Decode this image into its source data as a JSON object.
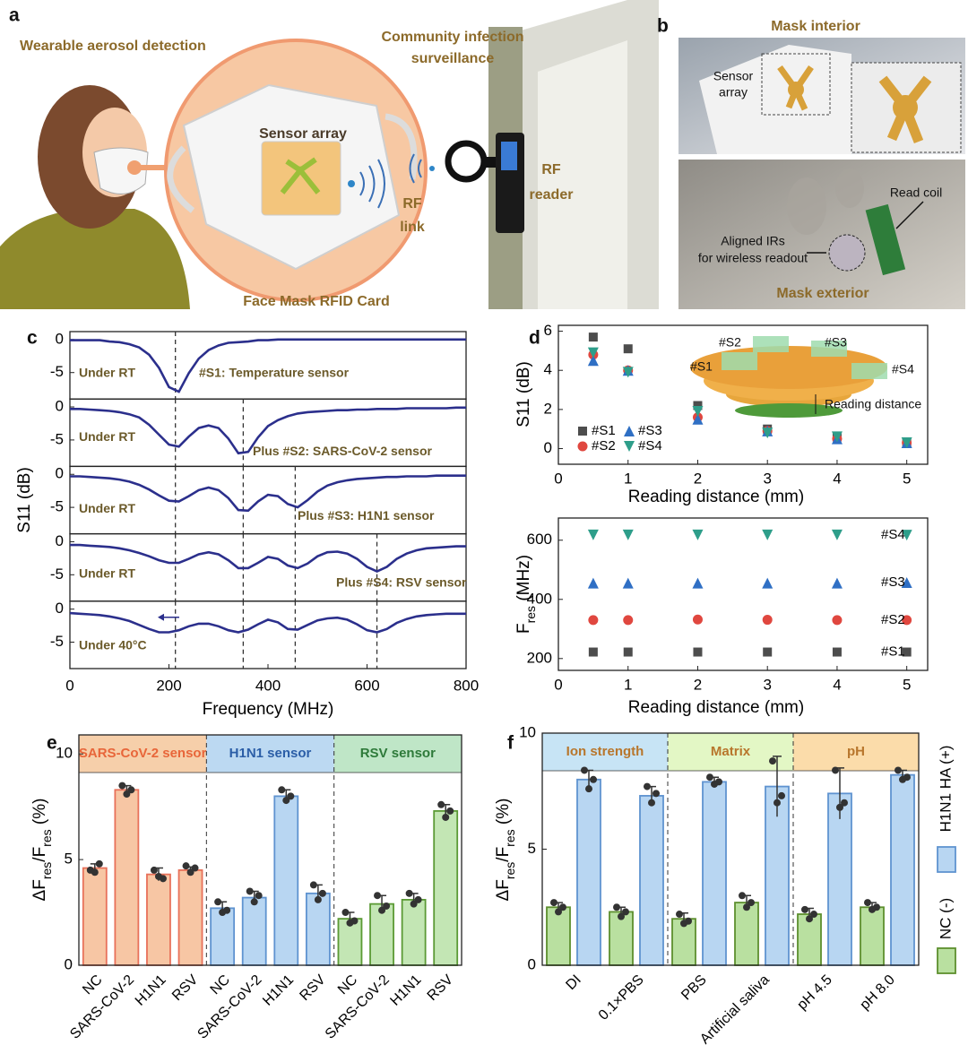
{
  "panels": {
    "a": {
      "label": "a",
      "wearable": "Wearable aerosol detection",
      "community": [
        "Community infection",
        "surveillance"
      ],
      "sensor_array": "Sensor array",
      "rf_link": [
        "RF",
        "link"
      ],
      "rf_reader": [
        "RF",
        "reader"
      ],
      "card": "Face Mask RFID Card"
    },
    "b": {
      "label": "b",
      "interior": "Mask interior",
      "sensor_array": [
        "Sensor",
        "array"
      ],
      "read_coil": "Read coil",
      "aligned": [
        "Aligned IRs",
        "for wireless readout"
      ],
      "exterior": "Mask exterior"
    },
    "c": {
      "label": "c"
    },
    "d": {
      "label": "d",
      "inset_labels": [
        "#S1",
        "#S2",
        "#S3",
        "#S4"
      ],
      "inset_distance": "Reading distance"
    },
    "e": {
      "label": "e"
    },
    "f": {
      "label": "f"
    }
  },
  "chart_data": [
    {
      "type": "line",
      "xlabel": "Frequency (MHz)",
      "ylabel": "S11 (dB)",
      "xlim": [
        0,
        800
      ],
      "xticks": [
        0,
        200,
        400,
        600,
        800
      ],
      "x": [
        0,
        20,
        40,
        60,
        80,
        100,
        120,
        140,
        160,
        180,
        200,
        220,
        240,
        260,
        280,
        300,
        320,
        340,
        360,
        380,
        400,
        420,
        440,
        460,
        480,
        500,
        520,
        540,
        560,
        580,
        600,
        620,
        640,
        660,
        680,
        700,
        720,
        740,
        760,
        780,
        800
      ],
      "subplots": [
        {
          "ylim": [
            -9,
            1.2
          ],
          "yticks": [
            -5,
            0
          ],
          "color": "#2b2f8c",
          "markers": [
            213
          ],
          "annotations": [
            "Under RT",
            "#S1: Temperature sensor"
          ],
          "values": [
            -0.1,
            -0.1,
            -0.1,
            -0.1,
            -0.3,
            -0.4,
            -0.7,
            -1.2,
            -2.3,
            -4.3,
            -7.2,
            -7.9,
            -5.1,
            -2.9,
            -1.6,
            -0.9,
            -0.5,
            -0.4,
            -0.3,
            -0.1,
            -0.1,
            0,
            0,
            0,
            0,
            0,
            0,
            0,
            0,
            0,
            0,
            0,
            0,
            0,
            0,
            0,
            0,
            0,
            0,
            0,
            0
          ]
        },
        {
          "ylim": [
            -9,
            1.2
          ],
          "yticks": [
            -5,
            0
          ],
          "color": "#2b2f8c",
          "markers": [
            213,
            350
          ],
          "annotations": [
            "Under RT",
            "Plus #S2: SARS-CoV-2 sensor"
          ],
          "values": [
            -0.3,
            -0.3,
            -0.4,
            -0.5,
            -0.6,
            -0.8,
            -1.1,
            -1.6,
            -2.7,
            -4.2,
            -5.7,
            -6.0,
            -4.5,
            -3.2,
            -2.8,
            -3.2,
            -4.8,
            -7.0,
            -6.8,
            -4.6,
            -2.9,
            -2.0,
            -1.4,
            -1.0,
            -0.8,
            -0.7,
            -0.6,
            -0.5,
            -0.5,
            -0.4,
            -0.4,
            -0.3,
            -0.3,
            -0.3,
            -0.2,
            -0.2,
            -0.2,
            -0.2,
            -0.2,
            -0.1,
            -0.1
          ]
        },
        {
          "ylim": [
            -9,
            1.2
          ],
          "yticks": [
            -5,
            0
          ],
          "color": "#2b2f8c",
          "markers": [
            213,
            350,
            455
          ],
          "annotations": [
            "Under RT",
            "Plus #S3: H1N1 sensor"
          ],
          "values": [
            -0.3,
            -0.3,
            -0.4,
            -0.5,
            -0.6,
            -0.8,
            -1.1,
            -1.6,
            -2.3,
            -3.2,
            -4.0,
            -4.1,
            -3.3,
            -2.4,
            -2.0,
            -2.4,
            -3.6,
            -5.4,
            -5.5,
            -4.1,
            -3.1,
            -3.3,
            -4.5,
            -5.0,
            -3.9,
            -2.6,
            -1.7,
            -1.2,
            -0.9,
            -0.7,
            -0.6,
            -0.5,
            -0.4,
            -0.4,
            -0.3,
            -0.3,
            -0.3,
            -0.2,
            -0.2,
            -0.2,
            -0.2
          ]
        },
        {
          "ylim": [
            -9,
            1.2
          ],
          "yticks": [
            -5,
            0
          ],
          "color": "#2b2f8c",
          "markers": [
            213,
            350,
            455,
            620
          ],
          "annotations": [
            "Under RT",
            "Plus #S4: RSV sensor"
          ],
          "values": [
            -0.5,
            -0.5,
            -0.6,
            -0.7,
            -0.8,
            -1.0,
            -1.3,
            -1.7,
            -2.2,
            -2.8,
            -3.2,
            -3.2,
            -2.6,
            -1.9,
            -1.6,
            -1.9,
            -2.8,
            -4.0,
            -4.0,
            -3.2,
            -2.3,
            -2.6,
            -3.6,
            -4.0,
            -3.3,
            -2.2,
            -1.6,
            -1.5,
            -1.8,
            -2.6,
            -3.8,
            -4.5,
            -3.8,
            -2.6,
            -1.8,
            -1.3,
            -1.0,
            -0.9,
            -0.8,
            -0.7,
            -0.7
          ]
        },
        {
          "ylim": [
            -9,
            1.2
          ],
          "yticks": [
            -5,
            0
          ],
          "color": "#2b2f8c",
          "markers": [
            213,
            350,
            455,
            620
          ],
          "annotations": [
            "Under 40°C"
          ],
          "values": [
            -0.6,
            -0.7,
            -0.8,
            -0.9,
            -1.1,
            -1.4,
            -1.8,
            -2.4,
            -3.0,
            -3.5,
            -3.5,
            -3.2,
            -2.6,
            -2.2,
            -2.2,
            -2.6,
            -3.2,
            -3.5,
            -3.1,
            -2.3,
            -1.6,
            -2.0,
            -3.0,
            -3.1,
            -2.4,
            -1.7,
            -1.4,
            -1.3,
            -1.6,
            -2.3,
            -3.2,
            -3.5,
            -3.0,
            -2.1,
            -1.5,
            -1.1,
            -0.9,
            -0.8,
            -0.7,
            -0.7,
            -0.7
          ]
        }
      ]
    },
    {
      "type": "scatter",
      "xlabel": "Reading distance (mm)",
      "ylabel": "S11 (dB)",
      "xlim": [
        0,
        5.3
      ],
      "xticks": [
        0,
        1,
        2,
        3,
        4,
        5
      ],
      "ylim": [
        -0.8,
        6.3
      ],
      "yticks": [
        0,
        2,
        4,
        6
      ],
      "legend": "left",
      "x": [
        0.5,
        1,
        2,
        3,
        4,
        5
      ],
      "series": [
        {
          "name": "#S1",
          "color": "#4d4d4d",
          "marker": "square",
          "values": [
            5.7,
            5.1,
            2.2,
            1.0,
            0.6,
            0.3
          ]
        },
        {
          "name": "#S2",
          "color": "#e0473f",
          "marker": "circle",
          "values": [
            4.8,
            4.0,
            1.6,
            0.9,
            0.5,
            0.3
          ]
        },
        {
          "name": "#S3",
          "color": "#2f6fc4",
          "marker": "triangle-up",
          "values": [
            4.5,
            4.0,
            1.5,
            0.9,
            0.5,
            0.3
          ]
        },
        {
          "name": "#S4",
          "color": "#2e9e8a",
          "marker": "triangle-down",
          "values": [
            4.9,
            3.9,
            1.9,
            0.8,
            0.6,
            0.3
          ]
        }
      ]
    },
    {
      "type": "scatter",
      "xlabel": "Reading distance (mm)",
      "ylabel": [
        "F",
        "res",
        " (MHz)"
      ],
      "xlim": [
        0,
        5.3
      ],
      "xticks": [
        0,
        1,
        2,
        3,
        4,
        5
      ],
      "ylim": [
        160,
        675
      ],
      "yticks": [
        200,
        400,
        600
      ],
      "legend": "inline",
      "x": [
        0.5,
        1,
        2,
        3,
        4,
        5
      ],
      "series": [
        {
          "name": "#S1",
          "color": "#4d4d4d",
          "marker": "square",
          "values": [
            222,
            222,
            222,
            222,
            222,
            222
          ]
        },
        {
          "name": "#S2",
          "color": "#e0473f",
          "marker": "circle",
          "values": [
            330,
            330,
            332,
            331,
            330,
            330
          ]
        },
        {
          "name": "#S3",
          "color": "#2f6fc4",
          "marker": "triangle-up",
          "values": [
            455,
            455,
            455,
            455,
            455,
            457
          ]
        },
        {
          "name": "#S4",
          "color": "#2e9e8a",
          "marker": "triangle-down",
          "values": [
            618,
            618,
            618,
            618,
            618,
            617
          ]
        }
      ]
    },
    {
      "type": "bar",
      "ylabel": [
        "ΔF",
        "res",
        "/F",
        "res",
        " (%)"
      ],
      "ylim": [
        0,
        10.9
      ],
      "yticks": [
        0,
        5,
        10
      ],
      "groups": [
        {
          "title": "SARS-CoV-2 sensor",
          "band_color": "#f6cfaa",
          "title_color": "#e8663a",
          "fill": "#f7c6a4",
          "edge": "#e8715a",
          "categories": [
            "NC",
            "SARS-CoV-2",
            "H1N1",
            "RSV"
          ],
          "values": [
            4.6,
            8.3,
            4.3,
            4.5
          ],
          "errors": [
            0.2,
            0.2,
            0.3,
            0.15
          ],
          "points": [
            [
              4.5,
              4.8,
              4.4
            ],
            [
              8.5,
              8.3,
              8.1
            ],
            [
              4.5,
              4.1,
              4.2
            ],
            [
              4.7,
              4.6,
              4.4
            ]
          ]
        },
        {
          "title": "H1N1 sensor",
          "band_color": "#bcd9f2",
          "title_color": "#2b5ea7",
          "fill": "#b8d6f2",
          "edge": "#5f93d0",
          "categories": [
            "NC",
            "SARS-CoV-2",
            "H1N1",
            "RSV"
          ],
          "values": [
            2.7,
            3.2,
            8.0,
            3.4
          ],
          "errors": [
            0.3,
            0.3,
            0.3,
            0.4
          ],
          "points": [
            [
              3.0,
              2.6,
              2.5
            ],
            [
              3.5,
              3.3,
              3.0
            ],
            [
              8.3,
              8.0,
              7.8
            ],
            [
              3.8,
              3.4,
              3.1
            ]
          ]
        },
        {
          "title": "RSV sensor",
          "band_color": "#bfe6c7",
          "title_color": "#2e7a3a",
          "fill": "#c3e6b4",
          "edge": "#5b9a35",
          "categories": [
            "NC",
            "SARS-CoV-2",
            "H1N1",
            "RSV"
          ],
          "values": [
            2.2,
            2.9,
            3.1,
            7.3
          ],
          "errors": [
            0.3,
            0.4,
            0.3,
            0.3
          ],
          "points": [
            [
              2.5,
              2.1,
              2.0
            ],
            [
              3.3,
              2.8,
              2.6
            ],
            [
              3.4,
              3.1,
              2.9
            ],
            [
              7.6,
              7.3,
              7.0
            ]
          ]
        }
      ]
    },
    {
      "type": "bar",
      "ylabel": [
        "ΔF",
        "res",
        "/F",
        "res",
        " (%)"
      ],
      "ylim": [
        0,
        10
      ],
      "yticks": [
        0,
        5,
        10
      ],
      "legend": "right",
      "title_color": "#b8762c",
      "groups": [
        {
          "title": "Ion strength",
          "band_color": "#c7e4f5",
          "categories": [
            "DI",
            "0.1×PBS"
          ]
        },
        {
          "title": "Matrix",
          "band_color": "#e3f7c5",
          "categories": [
            "PBS",
            "Artificial saliva"
          ]
        },
        {
          "title": "pH",
          "band_color": "#fbdcaa",
          "categories": [
            "pH 4.5",
            "pH 8.0"
          ]
        }
      ],
      "series": [
        {
          "name": "NC (-)",
          "fill": "#b9e0a0",
          "edge": "#5d8f2e",
          "values": [
            2.5,
            2.3,
            2.0,
            2.7,
            2.2,
            2.5
          ],
          "errors": [
            0.2,
            0.2,
            0.25,
            0.3,
            0.25,
            0.2
          ],
          "points": [
            [
              2.7,
              2.5,
              2.3
            ],
            [
              2.5,
              2.3,
              2.1
            ],
            [
              2.2,
              1.9,
              1.8
            ],
            [
              3.0,
              2.7,
              2.5
            ],
            [
              2.4,
              2.2,
              2.0
            ],
            [
              2.7,
              2.5,
              2.4
            ]
          ]
        },
        {
          "name": "H1N1 HA (+)",
          "fill": "#b8d6f2",
          "edge": "#5f93d0",
          "values": [
            8.0,
            7.3,
            7.9,
            7.7,
            7.4,
            8.2
          ],
          "errors": [
            0.4,
            0.4,
            0.2,
            1.3,
            1.1,
            0.2
          ],
          "points": [
            [
              8.4,
              8.0,
              7.6
            ],
            [
              7.7,
              7.4,
              7.0
            ],
            [
              8.1,
              7.9,
              7.8
            ],
            [
              8.8,
              7.3,
              7.0
            ],
            [
              8.4,
              7.0,
              6.8
            ],
            [
              8.4,
              8.1,
              8.0
            ]
          ]
        }
      ]
    }
  ]
}
